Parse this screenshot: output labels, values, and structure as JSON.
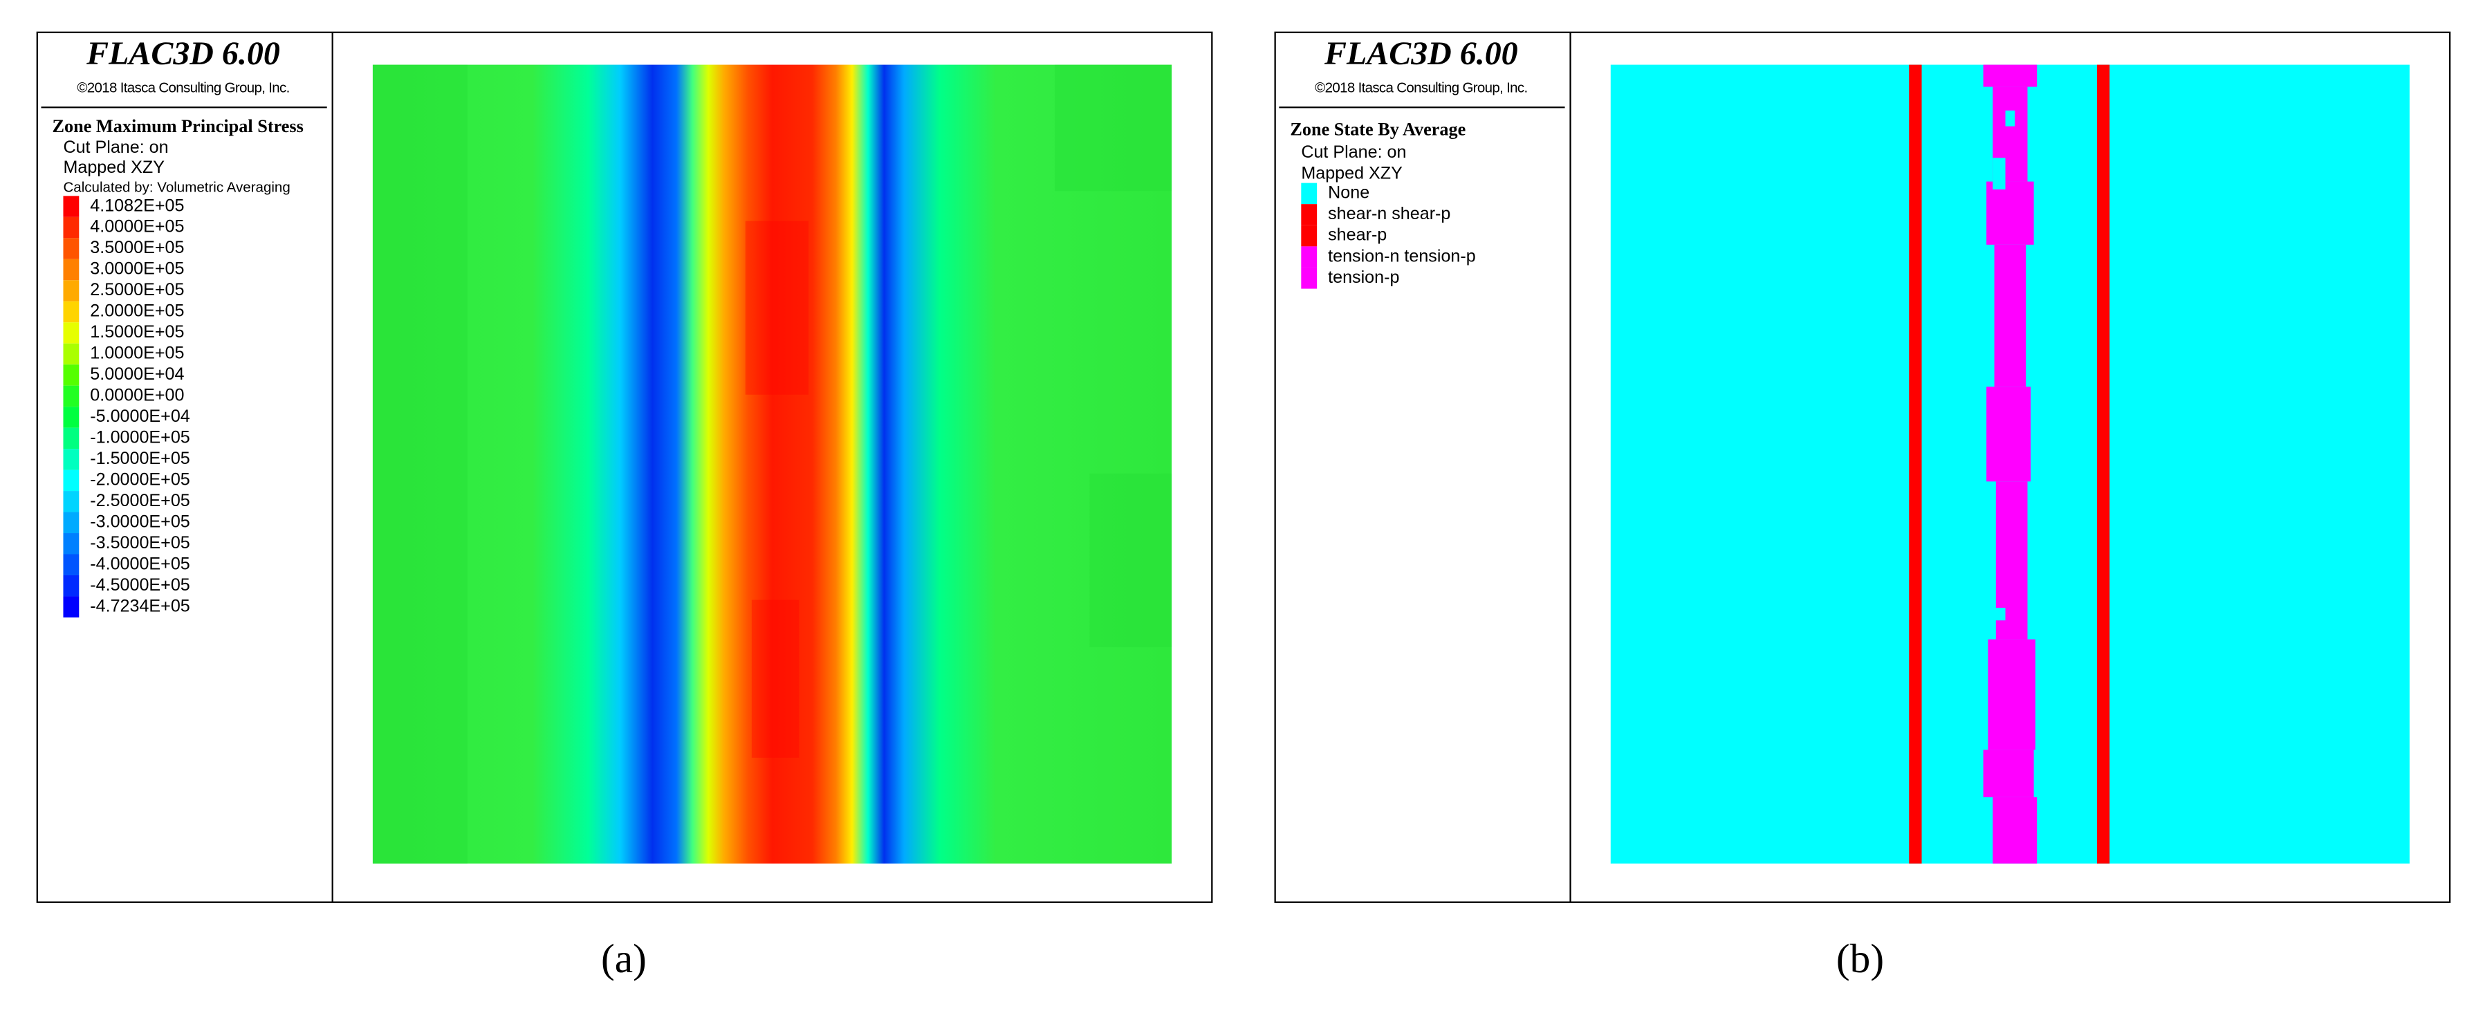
{
  "panels": [
    {
      "header": {
        "title": "FLAC3D 6.00",
        "copyright": "©2018 Itasca Consulting Group, Inc."
      },
      "legend": {
        "title": "Zone Maximum Principal Stress",
        "lines": [
          "Cut Plane: on",
          "Mapped XZY",
          "Calculated by: Volumetric Averaging"
        ],
        "items": [
          {
            "label": "4.1082E+05",
            "color": "#ff0000"
          },
          {
            "label": "4.0000E+05",
            "color": "#ff2a00"
          },
          {
            "label": "3.5000E+05",
            "color": "#ff5500"
          },
          {
            "label": "3.0000E+05",
            "color": "#ff8000"
          },
          {
            "label": "2.5000E+05",
            "color": "#ffaa00"
          },
          {
            "label": "2.0000E+05",
            "color": "#ffd400"
          },
          {
            "label": "1.5000E+05",
            "color": "#e6ff00"
          },
          {
            "label": "1.0000E+05",
            "color": "#aaff00"
          },
          {
            "label": "5.0000E+04",
            "color": "#55ff00"
          },
          {
            "label": "0.0000E+00",
            "color": "#22ff22"
          },
          {
            "label": "-5.0000E+04",
            "color": "#00ff40"
          },
          {
            "label": "-1.0000E+05",
            "color": "#00ff80"
          },
          {
            "label": "-1.5000E+05",
            "color": "#00ffbf"
          },
          {
            "label": "-2.0000E+05",
            "color": "#00ffff"
          },
          {
            "label": "-2.5000E+05",
            "color": "#00d4ff"
          },
          {
            "label": "-3.0000E+05",
            "color": "#00aaff"
          },
          {
            "label": "-3.5000E+05",
            "color": "#0080ff"
          },
          {
            "label": "-4.0000E+05",
            "color": "#0055ff"
          },
          {
            "label": "-4.5000E+05",
            "color": "#002aff"
          },
          {
            "label": "-4.7234E+05",
            "color": "#0000ff"
          }
        ]
      },
      "caption": "(a)"
    },
    {
      "header": {
        "title": "FLAC3D 6.00",
        "copyright": "©2018 Itasca Consulting Group, Inc."
      },
      "legend": {
        "title": "Zone State By Average",
        "lines": [
          "Cut Plane: on",
          "Mapped XZY"
        ],
        "items": [
          {
            "label": "None",
            "color": "#00ffff"
          },
          {
            "label": "shear-n shear-p",
            "color": "#ff0000"
          },
          {
            "label": "shear-p",
            "color": "#ff0000"
          },
          {
            "label": "tension-n tension-p",
            "color": "#ff00ff"
          },
          {
            "label": "tension-p",
            "color": "#ff00ff"
          }
        ]
      },
      "caption": "(b)"
    }
  ]
}
